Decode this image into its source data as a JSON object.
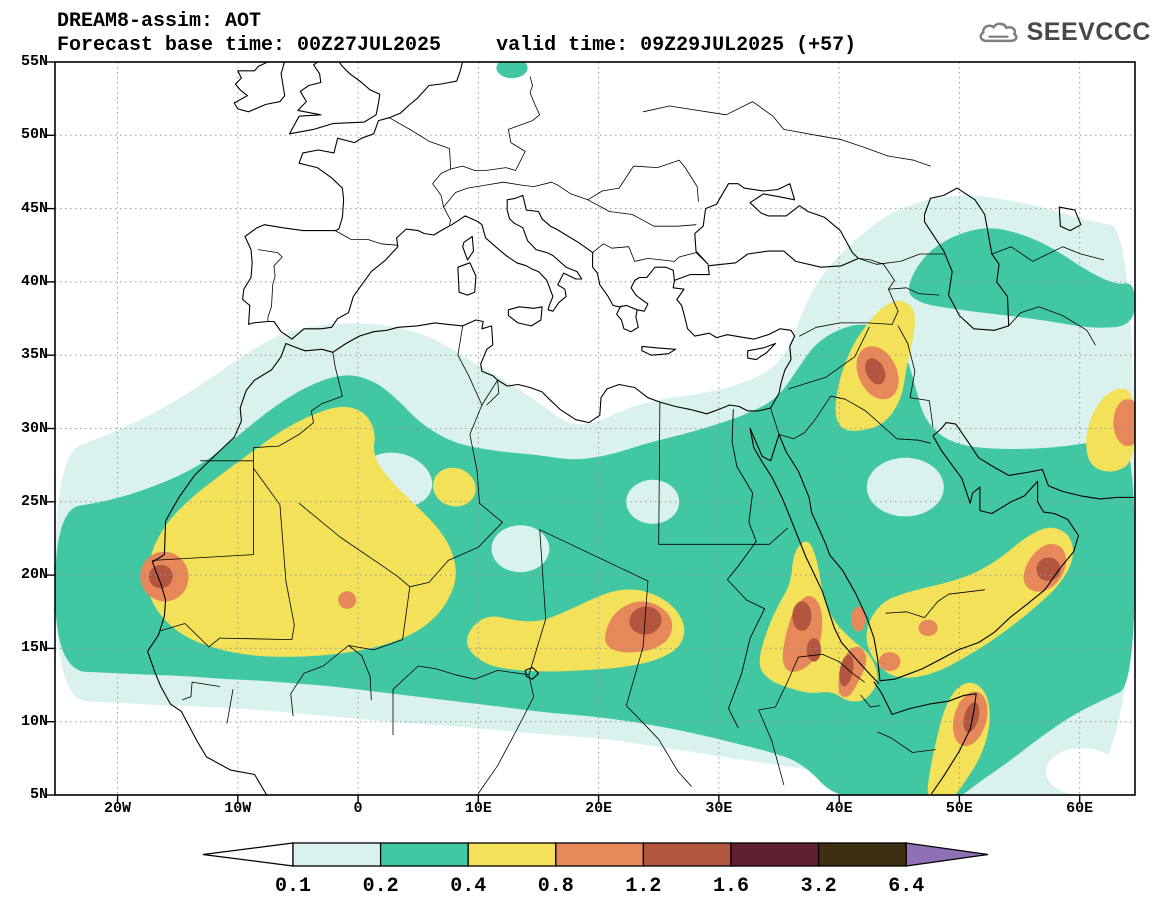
{
  "header": {
    "title": "DREAM8-assim: AOT",
    "base_time": "Forecast base time: 00Z27JUL2025",
    "valid_time": "valid time: 09Z29JUL2025 (+57)"
  },
  "logo": {
    "text": "SEEVCCC",
    "icon": "cloud-icon"
  },
  "map": {
    "model": "DREAM8-assim",
    "variable": "AOT",
    "lat_ticks": [
      "55N",
      "50N",
      "45N",
      "40N",
      "35N",
      "30N",
      "25N",
      "20N",
      "15N",
      "10N",
      "5N"
    ],
    "lon_ticks": [
      "20W",
      "10W",
      "0",
      "10E",
      "20E",
      "30E",
      "40E",
      "50E",
      "60E"
    ]
  },
  "colorbar": {
    "levels": [
      "0.1",
      "0.2",
      "0.4",
      "0.8",
      "1.2",
      "1.6",
      "3.2",
      "6.4"
    ],
    "segment_colors": [
      "#ffffff",
      "#d9f2ee",
      "#41c8a2",
      "#f2e159",
      "#e6885a",
      "#b2563f",
      "#61202f",
      "#3d2f12",
      "#8f70b5"
    ],
    "outline_color": "#000000"
  }
}
